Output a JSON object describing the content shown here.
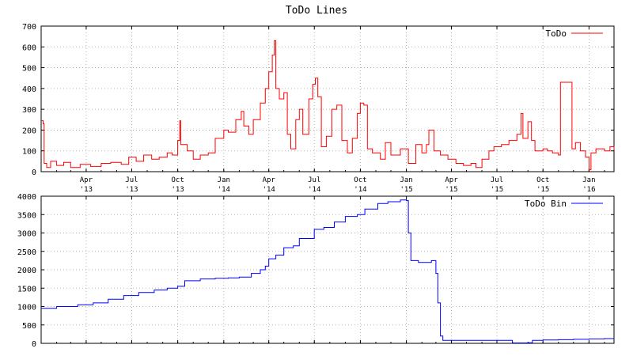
{
  "title": "ToDo Lines",
  "chart_data": [
    {
      "type": "line",
      "legend_position": "top-right",
      "grid": true,
      "ylim": [
        0,
        700
      ],
      "yticks": [
        "0",
        "100",
        "200",
        "300",
        "400",
        "500",
        "600",
        "700"
      ],
      "xlim": [
        "2013-01-01",
        "2016-02-20"
      ],
      "xticks": [
        {
          "date": "2013-04-01",
          "month": "Apr",
          "year": "'13"
        },
        {
          "date": "2013-07-01",
          "month": "Jul",
          "year": "'13"
        },
        {
          "date": "2013-10-01",
          "month": "Oct",
          "year": "'13"
        },
        {
          "date": "2014-01-01",
          "month": "Jan",
          "year": "'14"
        },
        {
          "date": "2014-04-01",
          "month": "Apr",
          "year": "'14"
        },
        {
          "date": "2014-07-01",
          "month": "Jul",
          "year": "'14"
        },
        {
          "date": "2014-10-01",
          "month": "Oct",
          "year": "'14"
        },
        {
          "date": "2015-01-01",
          "month": "Jan",
          "year": "'15"
        },
        {
          "date": "2015-04-01",
          "month": "Apr",
          "year": "'15"
        },
        {
          "date": "2015-07-01",
          "month": "Jul",
          "year": "'15"
        },
        {
          "date": "2015-10-01",
          "month": "Oct",
          "year": "'15"
        },
        {
          "date": "2016-01-01",
          "month": "Jan",
          "year": "'16"
        }
      ],
      "series": [
        {
          "name": "ToDo",
          "color": "#ff0000",
          "points": [
            [
              "2013-01-01",
              245
            ],
            [
              "2013-01-05",
              230
            ],
            [
              "2013-01-07",
              40
            ],
            [
              "2013-01-12",
              20
            ],
            [
              "2013-01-20",
              50
            ],
            [
              "2013-02-01",
              30
            ],
            [
              "2013-02-15",
              45
            ],
            [
              "2013-03-01",
              20
            ],
            [
              "2013-03-20",
              35
            ],
            [
              "2013-04-10",
              25
            ],
            [
              "2013-05-01",
              40
            ],
            [
              "2013-05-20",
              45
            ],
            [
              "2013-06-10",
              35
            ],
            [
              "2013-06-25",
              70
            ],
            [
              "2013-07-10",
              50
            ],
            [
              "2013-07-25",
              80
            ],
            [
              "2013-08-10",
              60
            ],
            [
              "2013-08-25",
              70
            ],
            [
              "2013-09-10",
              90
            ],
            [
              "2013-09-20",
              80
            ],
            [
              "2013-10-01",
              150
            ],
            [
              "2013-10-05",
              245
            ],
            [
              "2013-10-07",
              130
            ],
            [
              "2013-10-20",
              100
            ],
            [
              "2013-11-01",
              60
            ],
            [
              "2013-11-15",
              80
            ],
            [
              "2013-12-01",
              90
            ],
            [
              "2013-12-15",
              160
            ],
            [
              "2014-01-01",
              200
            ],
            [
              "2014-01-10",
              190
            ],
            [
              "2014-01-25",
              250
            ],
            [
              "2014-02-05",
              290
            ],
            [
              "2014-02-10",
              220
            ],
            [
              "2014-02-20",
              180
            ],
            [
              "2014-03-01",
              250
            ],
            [
              "2014-03-15",
              330
            ],
            [
              "2014-03-25",
              400
            ],
            [
              "2014-04-01",
              480
            ],
            [
              "2014-04-08",
              560
            ],
            [
              "2014-04-12",
              630
            ],
            [
              "2014-04-15",
              400
            ],
            [
              "2014-04-22",
              350
            ],
            [
              "2014-05-01",
              380
            ],
            [
              "2014-05-08",
              180
            ],
            [
              "2014-05-15",
              110
            ],
            [
              "2014-05-25",
              250
            ],
            [
              "2014-06-01",
              300
            ],
            [
              "2014-06-08",
              180
            ],
            [
              "2014-06-20",
              350
            ],
            [
              "2014-06-28",
              420
            ],
            [
              "2014-07-03",
              450
            ],
            [
              "2014-07-08",
              360
            ],
            [
              "2014-07-15",
              120
            ],
            [
              "2014-07-25",
              170
            ],
            [
              "2014-08-05",
              300
            ],
            [
              "2014-08-15",
              320
            ],
            [
              "2014-08-25",
              150
            ],
            [
              "2014-09-05",
              90
            ],
            [
              "2014-09-15",
              160
            ],
            [
              "2014-09-25",
              280
            ],
            [
              "2014-10-01",
              330
            ],
            [
              "2014-10-08",
              320
            ],
            [
              "2014-10-15",
              110
            ],
            [
              "2014-10-25",
              90
            ],
            [
              "2014-11-10",
              60
            ],
            [
              "2014-11-20",
              140
            ],
            [
              "2014-12-01",
              80
            ],
            [
              "2014-12-20",
              110
            ],
            [
              "2015-01-05",
              40
            ],
            [
              "2015-01-20",
              130
            ],
            [
              "2015-02-01",
              90
            ],
            [
              "2015-02-10",
              130
            ],
            [
              "2015-02-15",
              200
            ],
            [
              "2015-02-25",
              100
            ],
            [
              "2015-03-10",
              80
            ],
            [
              "2015-03-25",
              60
            ],
            [
              "2015-04-10",
              40
            ],
            [
              "2015-04-25",
              30
            ],
            [
              "2015-05-10",
              40
            ],
            [
              "2015-05-20",
              20
            ],
            [
              "2015-06-01",
              60
            ],
            [
              "2015-06-15",
              100
            ],
            [
              "2015-06-25",
              120
            ],
            [
              "2015-07-10",
              130
            ],
            [
              "2015-07-25",
              150
            ],
            [
              "2015-08-10",
              180
            ],
            [
              "2015-08-18",
              280
            ],
            [
              "2015-08-22",
              160
            ],
            [
              "2015-09-01",
              240
            ],
            [
              "2015-09-08",
              150
            ],
            [
              "2015-09-15",
              100
            ],
            [
              "2015-10-01",
              110
            ],
            [
              "2015-10-10",
              100
            ],
            [
              "2015-10-20",
              90
            ],
            [
              "2015-11-01",
              80
            ],
            [
              "2015-11-05",
              430
            ],
            [
              "2015-11-25",
              430
            ],
            [
              "2015-11-28",
              110
            ],
            [
              "2015-12-05",
              140
            ],
            [
              "2015-12-15",
              100
            ],
            [
              "2015-12-25",
              70
            ],
            [
              "2016-01-01",
              10
            ],
            [
              "2016-01-05",
              90
            ],
            [
              "2016-01-15",
              110
            ],
            [
              "2016-02-01",
              100
            ],
            [
              "2016-02-12",
              120
            ],
            [
              "2016-02-20",
              105
            ]
          ]
        }
      ]
    },
    {
      "type": "line",
      "legend_position": "top-right",
      "grid": true,
      "ylim": [
        0,
        4000
      ],
      "yticks": [
        "0",
        "500",
        "1000",
        "1500",
        "2000",
        "2500",
        "3000",
        "3500",
        "4000"
      ],
      "xlim": [
        "2013-01-01",
        "2016-02-20"
      ],
      "series": [
        {
          "name": "ToDo Bin",
          "color": "#0000ff",
          "points": [
            [
              "2013-01-01",
              950
            ],
            [
              "2013-02-01",
              1000
            ],
            [
              "2013-03-15",
              1050
            ],
            [
              "2013-04-15",
              1100
            ],
            [
              "2013-05-15",
              1200
            ],
            [
              "2013-06-15",
              1300
            ],
            [
              "2013-07-15",
              1380
            ],
            [
              "2013-08-15",
              1450
            ],
            [
              "2013-09-10",
              1500
            ],
            [
              "2013-10-01",
              1550
            ],
            [
              "2013-10-15",
              1700
            ],
            [
              "2013-11-15",
              1750
            ],
            [
              "2013-12-15",
              1770
            ],
            [
              "2014-01-10",
              1780
            ],
            [
              "2014-02-01",
              1800
            ],
            [
              "2014-02-25",
              1900
            ],
            [
              "2014-03-15",
              2000
            ],
            [
              "2014-03-25",
              2100
            ],
            [
              "2014-04-01",
              2300
            ],
            [
              "2014-04-15",
              2400
            ],
            [
              "2014-05-01",
              2600
            ],
            [
              "2014-05-20",
              2650
            ],
            [
              "2014-06-01",
              2850
            ],
            [
              "2014-07-01",
              3100
            ],
            [
              "2014-07-20",
              3150
            ],
            [
              "2014-08-10",
              3300
            ],
            [
              "2014-09-01",
              3450
            ],
            [
              "2014-09-25",
              3500
            ],
            [
              "2014-10-10",
              3650
            ],
            [
              "2014-11-05",
              3800
            ],
            [
              "2014-11-25",
              3850
            ],
            [
              "2014-12-20",
              3900
            ],
            [
              "2015-01-01",
              3880
            ],
            [
              "2015-01-05",
              3000
            ],
            [
              "2015-01-10",
              2250
            ],
            [
              "2015-01-25",
              2200
            ],
            [
              "2015-02-20",
              2250
            ],
            [
              "2015-03-01",
              1900
            ],
            [
              "2015-03-05",
              1100
            ],
            [
              "2015-03-10",
              200
            ],
            [
              "2015-03-15",
              80
            ],
            [
              "2015-05-01",
              80
            ],
            [
              "2015-07-01",
              80
            ],
            [
              "2015-07-25",
              80
            ],
            [
              "2015-08-01",
              10
            ],
            [
              "2015-09-01",
              15
            ],
            [
              "2015-09-10",
              80
            ],
            [
              "2015-10-01",
              90
            ],
            [
              "2015-11-01",
              100
            ],
            [
              "2015-12-01",
              110
            ],
            [
              "2016-01-01",
              120
            ],
            [
              "2016-02-01",
              130
            ],
            [
              "2016-02-20",
              140
            ]
          ]
        }
      ]
    }
  ]
}
